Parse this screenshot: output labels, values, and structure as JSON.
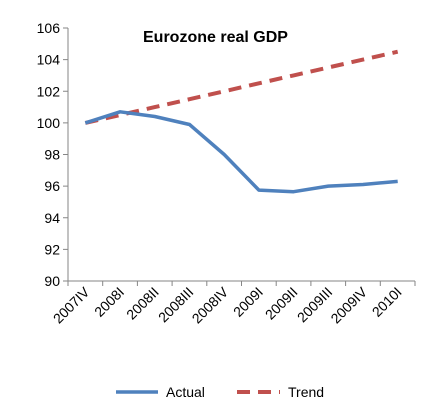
{
  "chart_data": {
    "type": "line",
    "title": "Eurozone real GDP",
    "xlabel": "",
    "ylabel": "",
    "categories": [
      "2007IV",
      "2008I",
      "2008II",
      "2008III",
      "2008IV",
      "2009I",
      "2009II",
      "2009III",
      "2009IV",
      "2010I"
    ],
    "ylim": [
      90,
      106
    ],
    "yticks": [
      90,
      92,
      94,
      96,
      98,
      100,
      102,
      104,
      106
    ],
    "grid": false,
    "legend": "bottom",
    "series": [
      {
        "name": "Actual",
        "style": "solid",
        "color": "#4f81bd",
        "values": [
          100.0,
          100.7,
          100.4,
          99.9,
          98.0,
          95.75,
          95.65,
          96.0,
          96.1,
          96.3
        ]
      },
      {
        "name": "Trend",
        "style": "dashed",
        "color": "#c0504d",
        "values": [
          100.0,
          100.5,
          101.0,
          101.5,
          102.0,
          102.5,
          103.0,
          103.5,
          104.0,
          104.5
        ]
      }
    ]
  }
}
